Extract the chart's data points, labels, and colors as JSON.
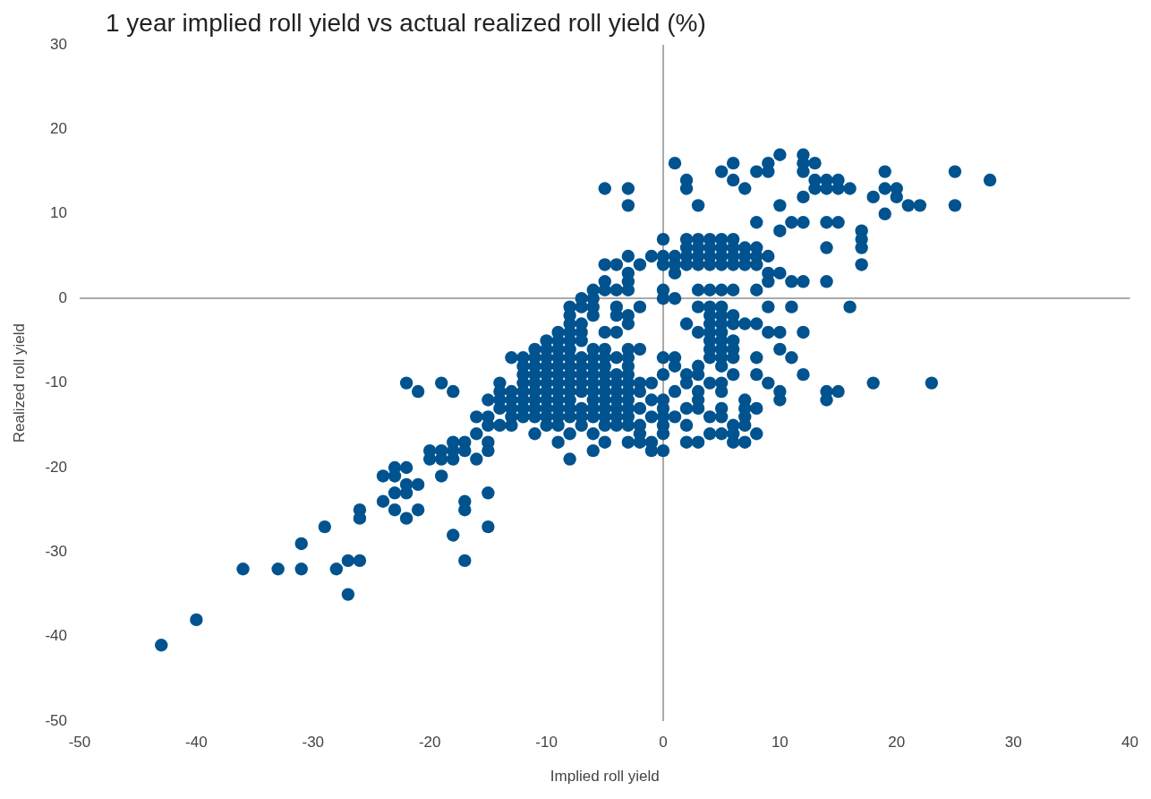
{
  "chart_data": {
    "type": "scatter",
    "title": "1 year implied roll yield vs actual realized roll yield (%)",
    "xlabel": "Implied roll yield",
    "ylabel": "Realized roll yield",
    "xlim": [
      -50,
      40
    ],
    "xticks": [
      -50,
      -40,
      -30,
      -20,
      -10,
      0,
      10,
      20,
      30,
      40
    ],
    "ylim": [
      -50,
      30
    ],
    "yticks": [
      -50,
      -40,
      -30,
      -20,
      -10,
      0,
      10,
      20,
      30
    ],
    "marker": "circle",
    "legend": false,
    "series": [
      {
        "color": "#00538f",
        "x": [
          10,
          12,
          1,
          6,
          9,
          12,
          13,
          5,
          8,
          9,
          12,
          19,
          25,
          2,
          6,
          13,
          14,
          15,
          28,
          -5,
          -3,
          2,
          7,
          13,
          14,
          15,
          16,
          19,
          20,
          12,
          18,
          20,
          -3,
          3,
          10,
          21,
          22,
          25,
          19,
          8,
          11,
          12,
          14,
          15,
          10,
          17,
          0,
          2,
          3,
          4,
          5,
          6,
          17,
          2,
          3,
          4,
          5,
          6,
          7,
          8,
          14,
          17,
          -3,
          -1,
          0,
          1,
          2,
          3,
          4,
          5,
          6,
          7,
          8,
          9,
          -5,
          -4,
          -2,
          0,
          1,
          2,
          3,
          4,
          5,
          6,
          7,
          8,
          17,
          -3,
          1,
          9,
          10,
          -5,
          -3,
          9,
          11,
          12,
          14,
          -6,
          -5,
          -4,
          -3,
          0,
          3,
          4,
          5,
          6,
          8,
          -7,
          -6,
          0,
          1,
          -8,
          -7,
          -6,
          -4,
          -2,
          3,
          4,
          5,
          9,
          11,
          16,
          -8,
          -6,
          -4,
          -3,
          4,
          5,
          6,
          -8,
          -7,
          -3,
          2,
          4,
          5,
          6,
          7,
          8,
          -9,
          -8,
          -7,
          -5,
          -4,
          3,
          4,
          5,
          9,
          10,
          12,
          -10,
          -9,
          -8,
          -7,
          4,
          5,
          6,
          -11,
          -10,
          -9,
          -8,
          -6,
          -5,
          -3,
          -2,
          4,
          5,
          6,
          10,
          -13,
          -12,
          -11,
          -10,
          -9,
          -8,
          -7,
          -6,
          -5,
          -4,
          -3,
          0,
          1,
          4,
          5,
          6,
          8,
          11,
          -12,
          -11,
          -10,
          -9,
          -8,
          -7,
          -6,
          -5,
          -3,
          1,
          3,
          5,
          -12,
          -11,
          -10,
          -9,
          -8,
          -7,
          -6,
          -5,
          -4,
          -3,
          0,
          2,
          3,
          6,
          8,
          12,
          -22,
          -19,
          -14,
          -12,
          -11,
          -10,
          -9,
          -8,
          -7,
          -6,
          -5,
          -4,
          -3,
          -2,
          -1,
          2,
          4,
          5,
          9,
          18,
          23,
          -21,
          -18,
          -14,
          -13,
          -12,
          -11,
          -10,
          -9,
          -8,
          -7,
          -6,
          -5,
          -4,
          -3,
          -2,
          1,
          3,
          5,
          10,
          14,
          15,
          -15,
          -14,
          -13,
          -12,
          -11,
          -10,
          -9,
          -8,
          -6,
          -5,
          -4,
          -3,
          -1,
          0,
          3,
          7,
          10,
          14,
          -14,
          -13,
          -12,
          -11,
          -10,
          -9,
          -8,
          -7,
          -6,
          -5,
          -4,
          -3,
          -2,
          0,
          2,
          3,
          5,
          7,
          8,
          -16,
          -15,
          -13,
          -12,
          -11,
          -10,
          -9,
          -8,
          -7,
          -6,
          -5,
          -4,
          -3,
          -1,
          0,
          1,
          4,
          5,
          7,
          -15,
          -14,
          -13,
          -10,
          -9,
          -7,
          -5,
          -4,
          -3,
          -2,
          0,
          2,
          6,
          7,
          -16,
          -11,
          -8,
          -6,
          -2,
          0,
          4,
          5,
          6,
          8,
          -18,
          -17,
          -15,
          -9,
          -5,
          -3,
          -2,
          -1,
          2,
          3,
          6,
          7,
          -20,
          -19,
          -18,
          -17,
          -15,
          -6,
          -1,
          0,
          -20,
          -19,
          -18,
          -16,
          -8,
          -23,
          -22,
          -24,
          -23,
          -19,
          -22,
          -21,
          -23,
          -22,
          -15,
          -24,
          -17,
          -26,
          -23,
          -21,
          -17,
          -26,
          -22,
          -29,
          -15,
          -18,
          -31,
          -27,
          -26,
          -17,
          -36,
          -33,
          -31,
          -28,
          -27,
          -40,
          -43
        ],
        "values": [
          17,
          17,
          16,
          16,
          16,
          16,
          16,
          15,
          15,
          15,
          15,
          15,
          15,
          14,
          14,
          14,
          14,
          14,
          14,
          13,
          13,
          13,
          13,
          13,
          13,
          13,
          13,
          13,
          13,
          12,
          12,
          12,
          11,
          11,
          11,
          11,
          11,
          11,
          10,
          9,
          9,
          9,
          9,
          9,
          8,
          8,
          7,
          7,
          7,
          7,
          7,
          7,
          7,
          6,
          6,
          6,
          6,
          6,
          6,
          6,
          6,
          6,
          5,
          5,
          5,
          5,
          5,
          5,
          5,
          5,
          5,
          5,
          5,
          5,
          4,
          4,
          4,
          4,
          4,
          4,
          4,
          4,
          4,
          4,
          4,
          4,
          4,
          3,
          3,
          3,
          3,
          2,
          2,
          2,
          2,
          2,
          2,
          1,
          1,
          1,
          1,
          1,
          1,
          1,
          1,
          1,
          1,
          0,
          0,
          0,
          0,
          -1,
          -1,
          -1,
          -1,
          -1,
          -1,
          -1,
          -1,
          -1,
          -1,
          -1,
          -2,
          -2,
          -2,
          -2,
          -2,
          -2,
          -2,
          -3,
          -3,
          -3,
          -3,
          -3,
          -3,
          -3,
          -3,
          -3,
          -4,
          -4,
          -4,
          -4,
          -4,
          -4,
          -4,
          -4,
          -4,
          -4,
          -4,
          -5,
          -5,
          -5,
          -5,
          -5,
          -5,
          -5,
          -6,
          -6,
          -6,
          -6,
          -6,
          -6,
          -6,
          -6,
          -6,
          -6,
          -6,
          -6,
          -7,
          -7,
          -7,
          -7,
          -7,
          -7,
          -7,
          -7,
          -7,
          -7,
          -7,
          -7,
          -7,
          -7,
          -7,
          -7,
          -7,
          -7,
          -8,
          -8,
          -8,
          -8,
          -8,
          -8,
          -8,
          -8,
          -8,
          -8,
          -8,
          -8,
          -9,
          -9,
          -9,
          -9,
          -9,
          -9,
          -9,
          -9,
          -9,
          -9,
          -9,
          -9,
          -9,
          -9,
          -9,
          -9,
          -10,
          -10,
          -10,
          -10,
          -10,
          -10,
          -10,
          -10,
          -10,
          -10,
          -10,
          -10,
          -10,
          -10,
          -10,
          -10,
          -10,
          -10,
          -10,
          -10,
          -10,
          -11,
          -11,
          -11,
          -11,
          -11,
          -11,
          -11,
          -11,
          -11,
          -11,
          -11,
          -11,
          -11,
          -11,
          -11,
          -11,
          -11,
          -11,
          -11,
          -11,
          -11,
          -12,
          -12,
          -12,
          -12,
          -12,
          -12,
          -12,
          -12,
          -12,
          -12,
          -12,
          -12,
          -12,
          -12,
          -12,
          -12,
          -12,
          -12,
          -13,
          -13,
          -13,
          -13,
          -13,
          -13,
          -13,
          -13,
          -13,
          -13,
          -13,
          -13,
          -13,
          -13,
          -13,
          -13,
          -13,
          -13,
          -13,
          -14,
          -14,
          -14,
          -14,
          -14,
          -14,
          -14,
          -14,
          -14,
          -14,
          -14,
          -14,
          -14,
          -14,
          -14,
          -14,
          -14,
          -14,
          -14,
          -15,
          -15,
          -15,
          -15,
          -15,
          -15,
          -15,
          -15,
          -15,
          -15,
          -15,
          -15,
          -15,
          -15,
          -16,
          -16,
          -16,
          -16,
          -16,
          -16,
          -16,
          -16,
          -16,
          -16,
          -17,
          -17,
          -17,
          -17,
          -17,
          -17,
          -17,
          -17,
          -17,
          -17,
          -17,
          -17,
          -18,
          -18,
          -18,
          -18,
          -18,
          -18,
          -18,
          -18,
          -19,
          -19,
          -19,
          -19,
          -19,
          -20,
          -20,
          -21,
          -21,
          -21,
          -22,
          -22,
          -23,
          -23,
          -23,
          -24,
          -24,
          -25,
          -25,
          -25,
          -25,
          -26,
          -26,
          -27,
          -27,
          -28,
          -29,
          -31,
          -31,
          -31,
          -32,
          -32,
          -32,
          -32,
          -35,
          -38,
          -41
        ]
      }
    ]
  }
}
